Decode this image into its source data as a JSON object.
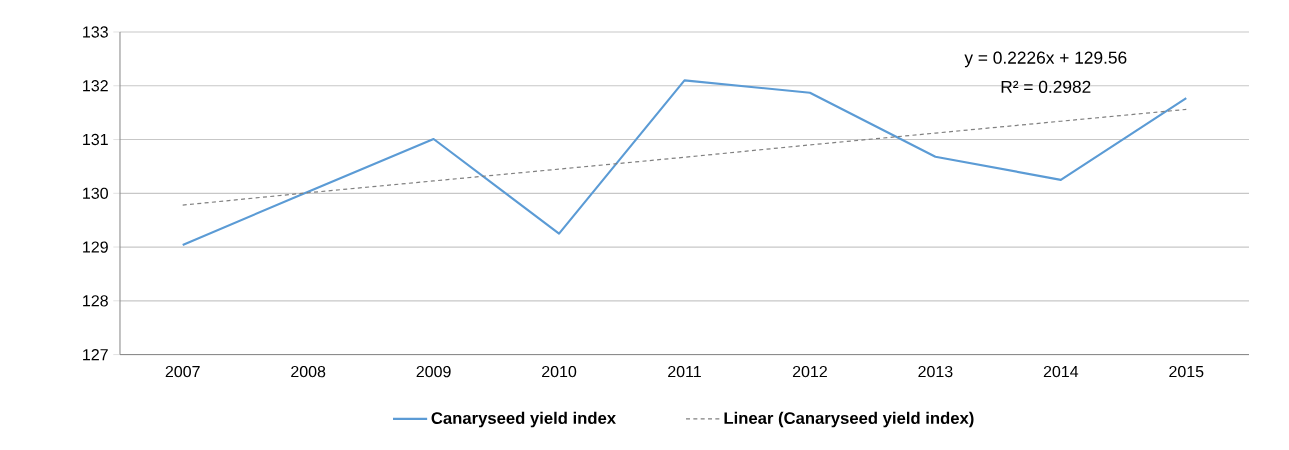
{
  "chart_data": {
    "type": "line",
    "categories": [
      "2007",
      "2008",
      "2009",
      "2010",
      "2011",
      "2012",
      "2013",
      "2014",
      "2015"
    ],
    "series": [
      {
        "name": "Canaryseed yield index",
        "color": "#5b9bd5",
        "values": [
          129.04,
          130.03,
          131.01,
          129.25,
          132.1,
          131.87,
          130.68,
          130.25,
          131.77
        ],
        "line_style": "solid"
      },
      {
        "name": "Linear (Canaryseed yield index)",
        "color": "#808080",
        "values": [
          129.78,
          130.01,
          130.23,
          130.45,
          130.67,
          130.9,
          131.12,
          131.34,
          131.56
        ],
        "line_style": "dashed"
      }
    ],
    "ylim": [
      127,
      133
    ],
    "yticks": [
      127,
      128,
      129,
      130,
      131,
      132,
      133
    ],
    "grid": "y",
    "legend": "bottom",
    "marker": "none",
    "annotations": [
      "y = 0.2226x + 129.56",
      "R² = 0.2982"
    ]
  }
}
